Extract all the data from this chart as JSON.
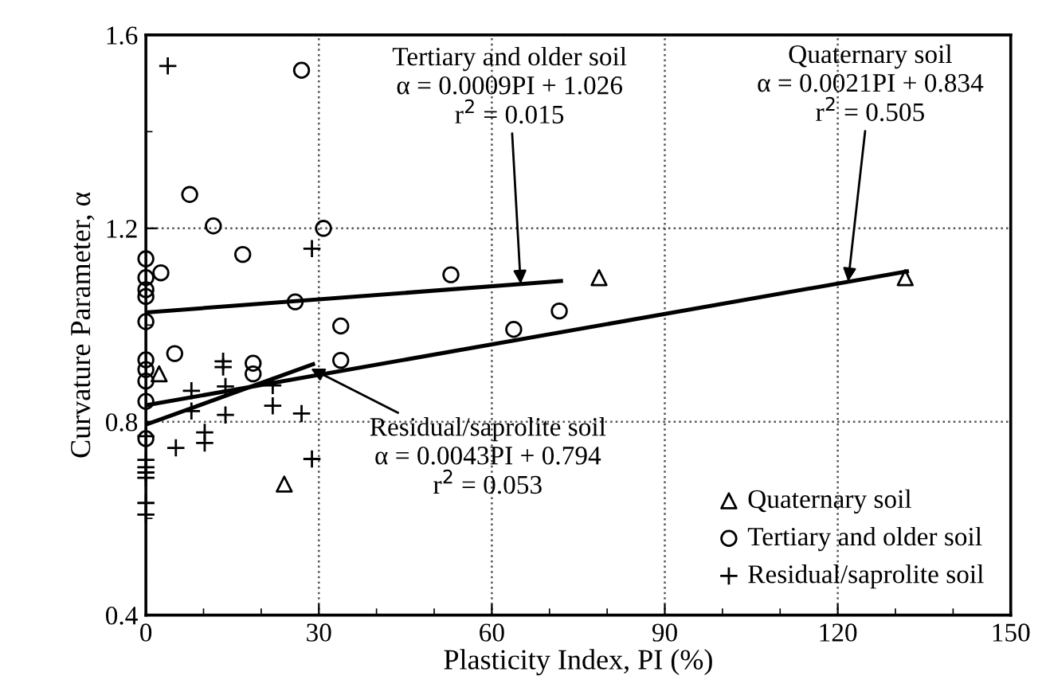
{
  "chart_data": {
    "type": "scatter",
    "xlabel": "Plasticity Index, PI (%)",
    "ylabel": "Curvature Parameter, α",
    "xlim": [
      0,
      150
    ],
    "ylim": [
      0.4,
      1.6
    ],
    "xticks": [
      0,
      {
        "value": 10,
        "label": null
      },
      {
        "value": 20,
        "label": null
      },
      30,
      {
        "value": 40,
        "label": null
      },
      {
        "value": 50,
        "label": null
      },
      60,
      {
        "value": 70,
        "label": null
      },
      {
        "value": 80,
        "label": null
      },
      90,
      {
        "value": 100,
        "label": null
      },
      {
        "value": 110,
        "label": null
      },
      120,
      {
        "value": 130,
        "label": null
      },
      {
        "value": 140,
        "label": null
      },
      150
    ],
    "yticks": [
      0.4,
      {
        "value": 0.6,
        "label": null
      },
      0.8,
      {
        "value": 1.0,
        "label": null
      },
      1.2,
      {
        "value": 1.4,
        "label": null
      },
      1.6
    ],
    "grid": true,
    "legend": "bottom right",
    "series": [
      {
        "name": "Quaternary soil",
        "marker": "triangle",
        "color": "#000000",
        "x": [
          2.3,
          24,
          78.6,
          131.7
        ],
        "values": [
          0.899,
          0.671,
          1.098,
          1.098
        ]
      },
      {
        "name": "Tertiary and older soil",
        "marker": "circle",
        "color": "#000000",
        "x": [
          27,
          7.6,
          11.7,
          30.8,
          16.8,
          0,
          0,
          2.6,
          0,
          0,
          0,
          25.9,
          33.8,
          52.9,
          63.8,
          71.7,
          33.8,
          5.0,
          0,
          0,
          0,
          0,
          18.6,
          18.6,
          0
        ],
        "values": [
          1.527,
          1.27,
          1.205,
          1.2,
          1.146,
          1.137,
          1.098,
          1.108,
          1.073,
          1.059,
          1.007,
          1.048,
          0.998,
          1.104,
          0.991,
          1.029,
          0.927,
          0.941,
          0.928,
          0.908,
          0.884,
          0.842,
          0.921,
          0.899,
          0.765
        ]
      },
      {
        "name": "Residual/saprolite soil",
        "marker": "cross",
        "color": "#000000",
        "x": [
          3.8,
          28.8,
          13.4,
          13.4,
          7.9,
          7.9,
          13.8,
          13.8,
          22,
          22,
          27,
          10.2,
          10.2,
          5.2,
          28.8,
          0,
          0,
          0,
          0,
          0,
          0,
          0
        ],
        "values": [
          1.536,
          1.158,
          0.925,
          0.913,
          0.864,
          0.822,
          0.873,
          0.814,
          0.875,
          0.833,
          0.817,
          0.778,
          0.756,
          0.746,
          0.723,
          0.721,
          0.706,
          0.695,
          0.684,
          0.632,
          0.608,
          0.77
        ]
      },
      {
        "type": "line",
        "color": "#000000",
        "x": [
          0,
          72
        ],
        "values": [
          1.026,
          1.091
        ]
      },
      {
        "type": "line",
        "color": "#000000",
        "x": [
          0,
          132
        ],
        "values": [
          0.834,
          1.111
        ]
      },
      {
        "type": "line",
        "color": "#000000",
        "x": [
          0,
          29
        ],
        "values": [
          0.794,
          0.919
        ]
      }
    ],
    "annotations": [
      {
        "text": "Tertiary and older soil\nα = 0.0009PI + 1.026\nr$^{2}$ = 0.015",
        "x": 65,
        "y": 1.085
      },
      {
        "text": "Quaternary soil\nα = 0.0021PI + 0.834\nr$^{2}$ = 0.505",
        "x": 121.8,
        "y": 1.09
      },
      {
        "text": "Residual/saprolite soil\nα = 0.0043PI + 0.794\nr$^{2}$ = 0.053",
        "x": 28.6,
        "y": 0.91
      }
    ]
  }
}
